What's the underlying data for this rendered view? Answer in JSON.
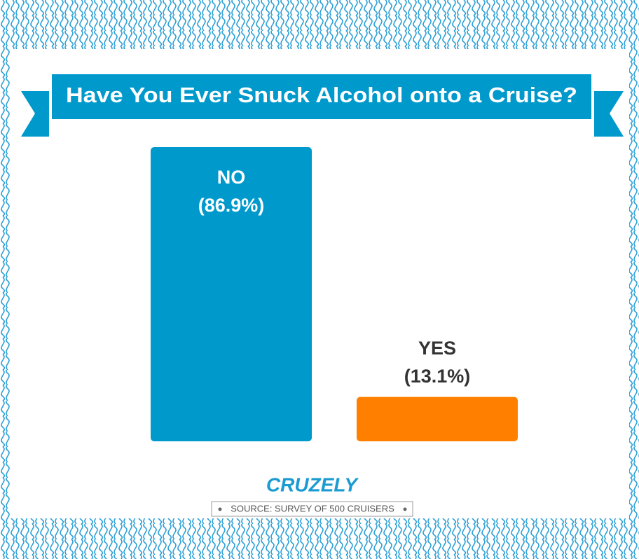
{
  "chart_data": {
    "type": "bar",
    "title": "Have You Ever Snuck Alcohol onto a Cruise?",
    "categories": [
      "NO",
      "YES"
    ],
    "values": [
      86.9,
      13.1
    ],
    "value_labels": [
      "(86.9%)",
      "(13.1%)"
    ],
    "colors": [
      "#0099cc",
      "#ff8000"
    ],
    "brand": "CRUZELY",
    "source": "SOURCE: SURVEY OF 500 CRUISERS"
  }
}
